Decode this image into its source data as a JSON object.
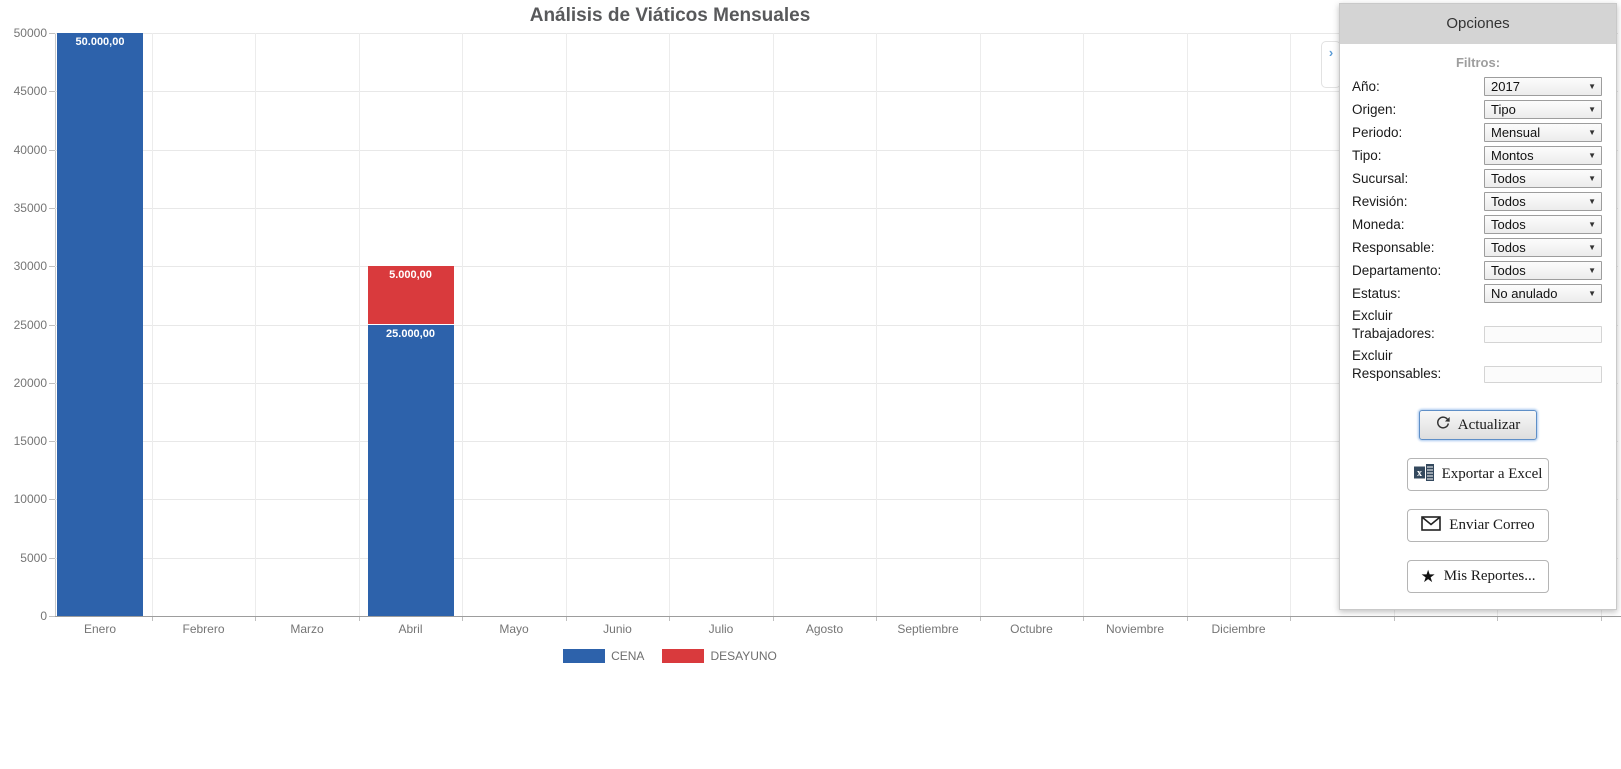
{
  "chart_data": {
    "type": "bar",
    "stacked": true,
    "title": "Análisis de Viáticos Mensuales",
    "categories": [
      "Enero",
      "Febrero",
      "Marzo",
      "Abril",
      "Mayo",
      "Junio",
      "Julio",
      "Agosto",
      "Septiembre",
      "Octubre",
      "Noviembre",
      "Diciembre"
    ],
    "series": [
      {
        "name": "CENA",
        "color": "#2d62ab",
        "values": [
          50000,
          0,
          0,
          25000,
          0,
          0,
          0,
          0,
          0,
          0,
          0,
          0
        ]
      },
      {
        "name": "DESAYUNO",
        "color": "#d93a3d",
        "values": [
          0,
          0,
          0,
          5000,
          0,
          0,
          0,
          0,
          0,
          0,
          0,
          0
        ]
      }
    ],
    "value_labels": [
      {
        "category": "Enero",
        "series": "CENA",
        "text": "50.000,00"
      },
      {
        "category": "Abril",
        "series": "CENA",
        "text": "25.000,00"
      },
      {
        "category": "Abril",
        "series": "DESAYUNO",
        "text": "5.000,00"
      }
    ],
    "ylim": [
      0,
      50000
    ],
    "ytick_step": 5000,
    "ytick_labels": [
      "0",
      "5000",
      "10000",
      "15000",
      "20000",
      "25000",
      "30000",
      "35000",
      "40000",
      "45000",
      "50000"
    ],
    "grid": true,
    "legend_position": "bottom"
  },
  "panel": {
    "title": "Opciones",
    "collapse_glyph": "›",
    "filters_heading": "Filtros:",
    "filters": [
      {
        "id": "ano",
        "label": "Año:",
        "value": "2017"
      },
      {
        "id": "origen",
        "label": "Origen:",
        "value": "Tipo"
      },
      {
        "id": "periodo",
        "label": "Periodo:",
        "value": "Mensual"
      },
      {
        "id": "tipo",
        "label": "Tipo:",
        "value": "Montos"
      },
      {
        "id": "sucursal",
        "label": "Sucursal:",
        "value": "Todos"
      },
      {
        "id": "revision",
        "label": "Revisión:",
        "value": "Todos"
      },
      {
        "id": "moneda",
        "label": "Moneda:",
        "value": "Todos"
      },
      {
        "id": "responsable",
        "label": "Responsable:",
        "value": "Todos"
      },
      {
        "id": "departamento",
        "label": "Departamento:",
        "value": "Todos"
      },
      {
        "id": "estatus",
        "label": "Estatus:",
        "value": "No anulado"
      }
    ],
    "exclude_inputs": [
      {
        "id": "excluir-trabajadores",
        "label_line1": "Excluir",
        "label_line2": "Trabajadores:",
        "value": ""
      },
      {
        "id": "excluir-responsables",
        "label_line1": "Excluir",
        "label_line2": "Responsables:",
        "value": ""
      }
    ],
    "buttons": {
      "actualizar": {
        "label": "Actualizar",
        "icon": "refresh-icon"
      },
      "exportar": {
        "label": "Exportar a Excel",
        "icon": "excel-icon"
      },
      "enviar": {
        "label": "Enviar Correo",
        "icon": "mail-icon"
      },
      "reportes": {
        "label": "Mis Reportes...",
        "icon": "star-icon"
      }
    }
  }
}
